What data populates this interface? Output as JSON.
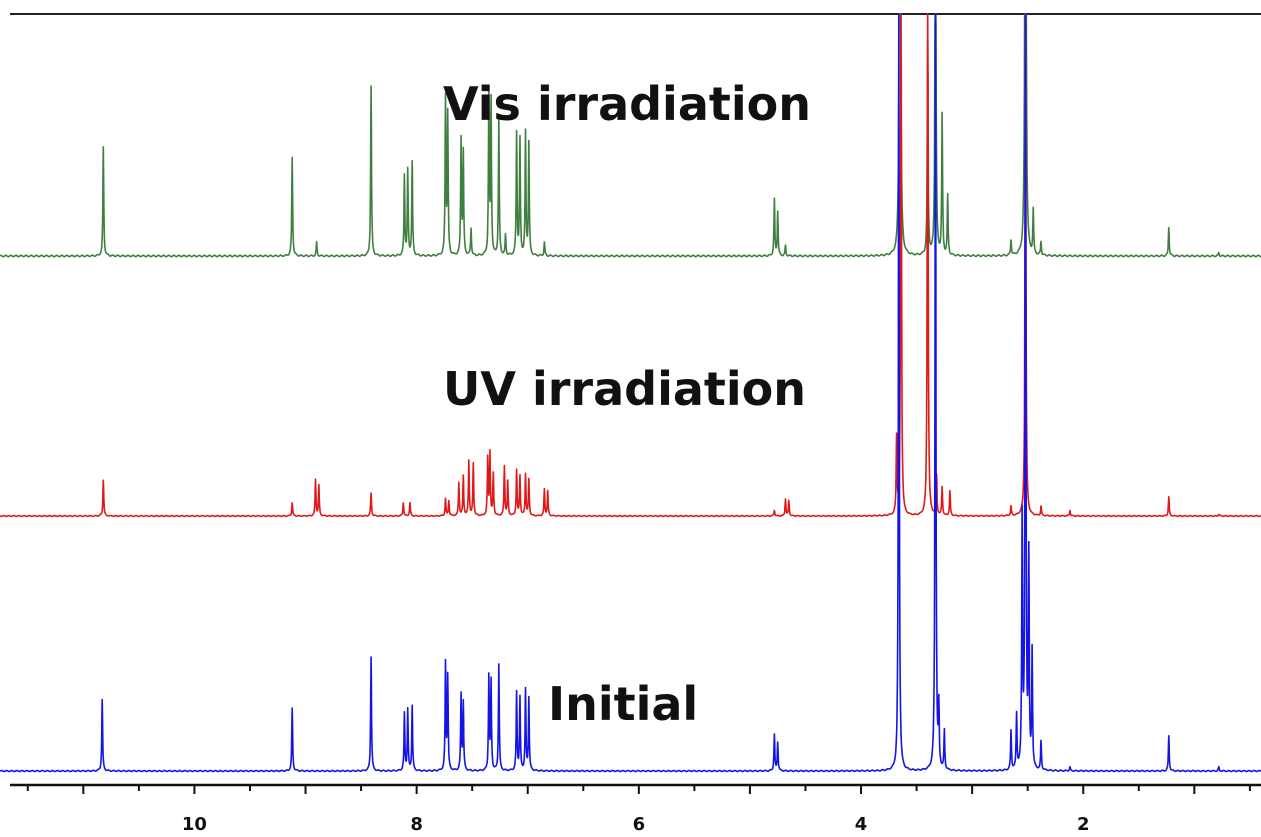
{
  "chart_data": {
    "type": "line",
    "subtype": "stacked NMR spectra",
    "x_axis": {
      "range": [
        11.75,
        0.4
      ],
      "reversed": true,
      "major_ticks": [
        10,
        8,
        6,
        4,
        2
      ],
      "tick_labels": [
        "10",
        "8",
        "6",
        "4",
        "2"
      ],
      "minor_step": 0.5,
      "label": ""
    },
    "grid": false,
    "series": [
      {
        "name": "Vis irradiation",
        "color": "#3f7f3f",
        "peaks": [
          [
            10.82,
            0.64
          ],
          [
            9.12,
            0.58
          ],
          [
            8.9,
            0.08
          ],
          [
            8.41,
            1.0
          ],
          [
            8.11,
            0.47
          ],
          [
            8.08,
            0.5
          ],
          [
            8.04,
            0.55
          ],
          [
            7.74,
            0.92
          ],
          [
            7.72,
            0.82
          ],
          [
            7.6,
            0.68
          ],
          [
            7.58,
            0.6
          ],
          [
            7.51,
            0.16
          ],
          [
            7.35,
            0.95
          ],
          [
            7.33,
            0.9
          ],
          [
            7.26,
            0.8
          ],
          [
            7.2,
            0.12
          ],
          [
            7.1,
            0.72
          ],
          [
            7.07,
            0.68
          ],
          [
            7.02,
            0.72
          ],
          [
            6.99,
            0.66
          ],
          [
            6.85,
            0.08
          ],
          [
            4.78,
            0.33
          ],
          [
            4.75,
            0.26
          ],
          [
            4.68,
            0.06
          ],
          [
            3.65,
            6.0
          ],
          [
            3.4,
            1.25
          ],
          [
            3.33,
            3.0
          ],
          [
            3.27,
            0.82
          ],
          [
            3.22,
            0.35
          ],
          [
            2.65,
            0.09
          ],
          [
            2.52,
            6.0
          ],
          [
            2.45,
            0.26
          ],
          [
            2.38,
            0.08
          ],
          [
            1.23,
            0.17
          ],
          [
            0.78,
            0.02
          ]
        ]
      },
      {
        "name": "UV irradiation",
        "color": "#e01818",
        "peaks": [
          [
            10.82,
            0.38
          ],
          [
            9.12,
            0.14
          ],
          [
            8.91,
            0.38
          ],
          [
            8.88,
            0.32
          ],
          [
            8.41,
            0.24
          ],
          [
            8.12,
            0.14
          ],
          [
            8.06,
            0.14
          ],
          [
            7.74,
            0.18
          ],
          [
            7.71,
            0.16
          ],
          [
            7.62,
            0.35
          ],
          [
            7.58,
            0.42
          ],
          [
            7.53,
            0.58
          ],
          [
            7.49,
            0.55
          ],
          [
            7.36,
            0.6
          ],
          [
            7.34,
            0.66
          ],
          [
            7.31,
            0.44
          ],
          [
            7.21,
            0.52
          ],
          [
            7.18,
            0.36
          ],
          [
            7.1,
            0.48
          ],
          [
            7.07,
            0.42
          ],
          [
            7.02,
            0.44
          ],
          [
            6.99,
            0.38
          ],
          [
            6.85,
            0.28
          ],
          [
            6.82,
            0.26
          ],
          [
            4.78,
            0.06
          ],
          [
            4.68,
            0.18
          ],
          [
            4.65,
            0.16
          ],
          [
            3.68,
            0.8
          ],
          [
            3.64,
            6.0
          ],
          [
            3.4,
            6.0
          ],
          [
            3.32,
            0.42
          ],
          [
            3.27,
            0.3
          ],
          [
            3.2,
            0.26
          ],
          [
            2.65,
            0.1
          ],
          [
            2.52,
            6.0
          ],
          [
            2.38,
            0.1
          ],
          [
            2.12,
            0.06
          ],
          [
            1.23,
            0.2
          ],
          [
            0.78,
            0.02
          ]
        ]
      },
      {
        "name": "Initial",
        "color": "#1414e6",
        "peaks": [
          [
            10.83,
            0.55
          ],
          [
            9.12,
            0.48
          ],
          [
            8.41,
            0.88
          ],
          [
            8.11,
            0.44
          ],
          [
            8.08,
            0.47
          ],
          [
            8.04,
            0.5
          ],
          [
            7.74,
            0.82
          ],
          [
            7.72,
            0.72
          ],
          [
            7.6,
            0.58
          ],
          [
            7.58,
            0.52
          ],
          [
            7.35,
            0.72
          ],
          [
            7.33,
            0.68
          ],
          [
            7.26,
            0.82
          ],
          [
            7.1,
            0.6
          ],
          [
            7.07,
            0.56
          ],
          [
            7.02,
            0.62
          ],
          [
            6.99,
            0.56
          ],
          [
            4.78,
            0.28
          ],
          [
            4.75,
            0.22
          ],
          [
            3.66,
            6.0
          ],
          [
            3.33,
            6.0
          ],
          [
            3.3,
            0.45
          ],
          [
            3.25,
            0.3
          ],
          [
            2.65,
            0.3
          ],
          [
            2.6,
            0.42
          ],
          [
            2.55,
            1.9
          ],
          [
            2.52,
            6.0
          ],
          [
            2.49,
            1.6
          ],
          [
            2.46,
            0.9
          ],
          [
            2.38,
            0.22
          ],
          [
            2.12,
            0.03
          ],
          [
            1.23,
            0.27
          ],
          [
            0.78,
            0.03
          ]
        ]
      }
    ]
  }
}
